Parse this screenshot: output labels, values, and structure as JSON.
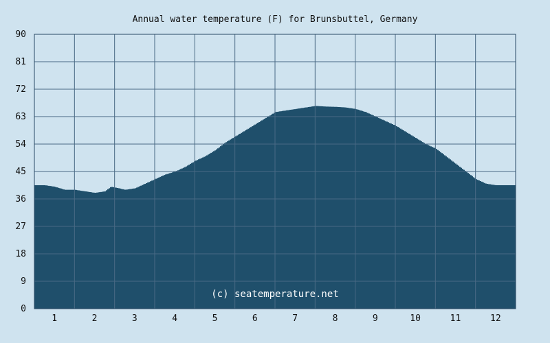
{
  "chart_data": {
    "type": "area",
    "title": "Annual water temperature (F) for Brunsbuttel, Germany",
    "xlabel": "",
    "ylabel": "",
    "x_tick_labels": [
      "1",
      "2",
      "3",
      "4",
      "5",
      "6",
      "7",
      "8",
      "9",
      "10",
      "11",
      "12"
    ],
    "y_tick_labels": [
      "0",
      "9",
      "18",
      "27",
      "36",
      "45",
      "54",
      "63",
      "72",
      "81",
      "90"
    ],
    "ylim": [
      0,
      90
    ],
    "xlim": [
      0.5,
      12.5
    ],
    "grid": true,
    "series": [
      {
        "x": [
          0.5,
          0.75,
          1.0,
          1.25,
          1.5,
          1.75,
          2.0,
          2.25,
          2.4,
          2.6,
          2.75,
          3.0,
          3.25,
          3.5,
          3.75,
          4.0,
          4.25,
          4.5,
          4.75,
          5.0,
          5.25,
          5.5,
          5.75,
          6.0,
          6.25,
          6.5,
          6.75,
          7.0,
          7.25,
          7.5,
          7.75,
          8.0,
          8.25,
          8.5,
          8.75,
          9.0,
          9.25,
          9.5,
          9.75,
          10.0,
          10.25,
          10.5,
          10.75,
          11.0,
          11.25,
          11.5,
          11.75,
          12.0,
          12.25,
          12.5
        ],
        "values": [
          40.5,
          40.5,
          40.0,
          39.0,
          39.0,
          38.5,
          38.0,
          38.5,
          40.0,
          39.5,
          39.0,
          39.5,
          41.0,
          42.5,
          44.0,
          45.0,
          46.5,
          48.5,
          50.0,
          52.0,
          54.5,
          56.5,
          58.5,
          60.5,
          62.5,
          64.5,
          65.0,
          65.5,
          66.0,
          66.5,
          66.3,
          66.2,
          66.0,
          65.5,
          64.5,
          63.0,
          61.5,
          60.0,
          58.0,
          56.0,
          54.0,
          52.5,
          50.0,
          47.5,
          45.0,
          42.5,
          41.0,
          40.5,
          40.5,
          40.5
        ]
      }
    ],
    "colors": {
      "background": "#cfe3ef",
      "plot_background": "#cfe3ef",
      "fill": "#1f4f6b",
      "grid": "#4a6a84",
      "axis": "#2a4a64"
    },
    "watermark": "(c) seatemperature.net"
  }
}
